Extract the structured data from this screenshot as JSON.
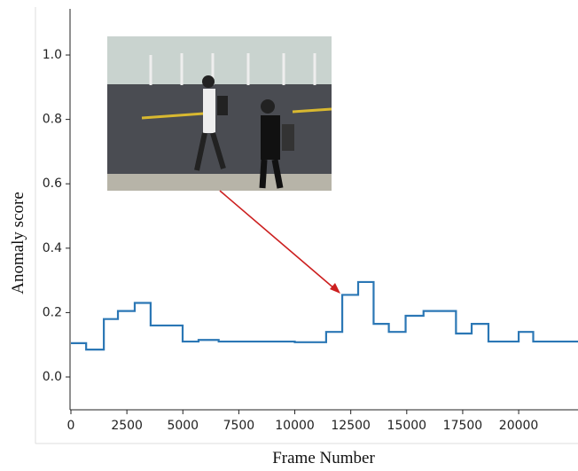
{
  "chart_data": {
    "type": "line",
    "step": "post",
    "xlabel": "Frame Number",
    "ylabel": "Anomaly score",
    "color": "#2b77b5",
    "xlim": [
      0,
      22650
    ],
    "ylim": [
      -0.1,
      1.14
    ],
    "xticks": [
      0,
      2500,
      5000,
      7500,
      10000,
      12500,
      15000,
      17500,
      20000
    ],
    "yticks": [
      {
        "value": 0,
        "label": "0.0"
      },
      0.2,
      0.4,
      0.6,
      0.8,
      {
        "value": 1,
        "label": "1.0"
      }
    ],
    "x": [
      0,
      680,
      1470,
      2100,
      2850,
      3560,
      4990,
      5700,
      6600,
      10000,
      11400,
      12120,
      12830,
      13520,
      14200,
      14950,
      15750,
      17200,
      17900,
      18650,
      20000,
      20650,
      22650
    ],
    "values": [
      0.105,
      0.085,
      0.18,
      0.205,
      0.23,
      0.16,
      0.11,
      0.115,
      0.11,
      0.108,
      0.14,
      0.255,
      0.295,
      0.165,
      0.14,
      0.19,
      0.205,
      0.135,
      0.165,
      0.11,
      0.14,
      0.11,
      0.11
    ]
  }
}
